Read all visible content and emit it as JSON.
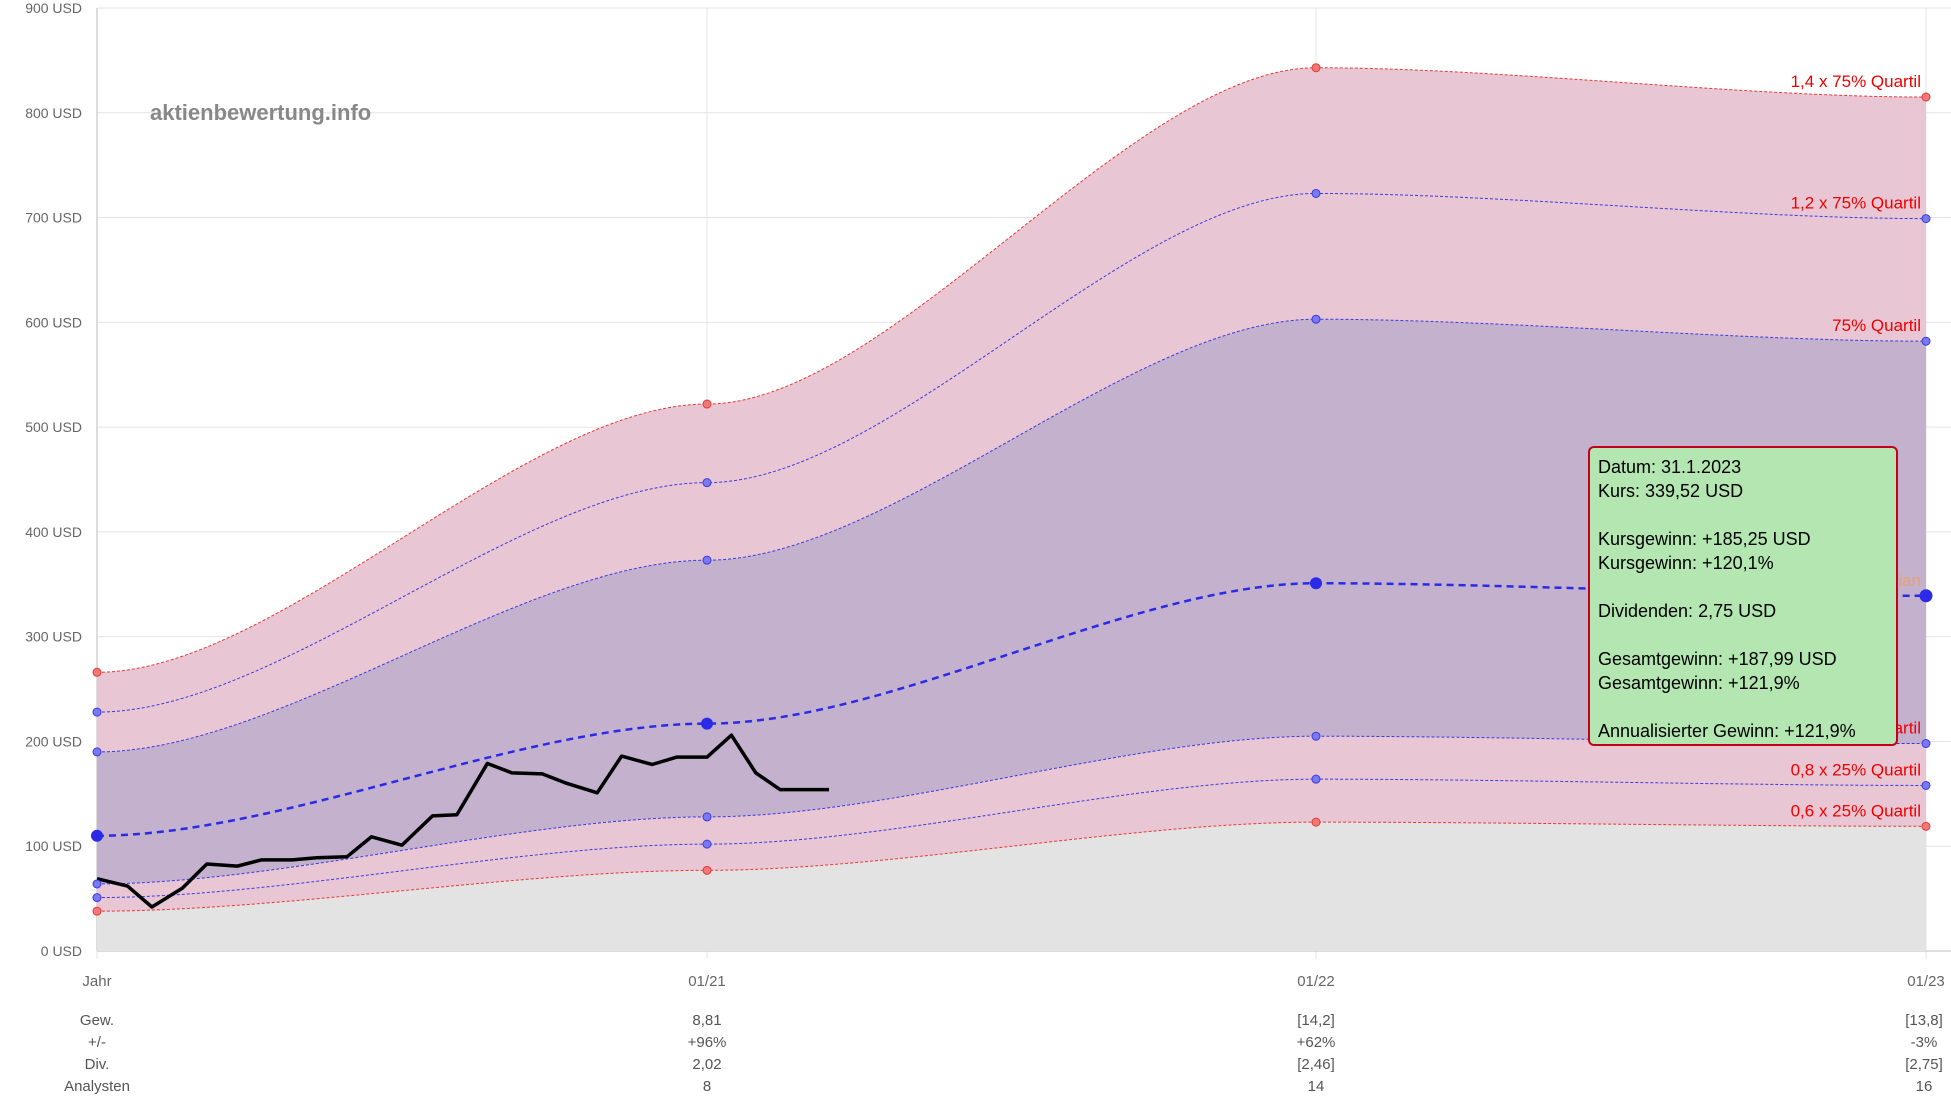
{
  "watermark": "aktienbewertung.info",
  "chart_data": {
    "type": "line",
    "x_categories": [
      "Jahr",
      "01/21",
      "01/22",
      "01/23"
    ],
    "y_ticks": [
      "0 USD",
      "100 USD",
      "200 USD",
      "300 USD",
      "400 USD",
      "500 USD",
      "600 USD",
      "700 USD",
      "800 USD",
      "900 USD"
    ],
    "ylim": [
      0,
      900
    ],
    "grid": true,
    "bands": [
      {
        "name": "1,4 x 75% Quartil",
        "color": "#e53935",
        "values": [
          266,
          522,
          843,
          815
        ]
      },
      {
        "name": "1,2 x 75% Quartil",
        "color": "#3a3ae0",
        "values": [
          228,
          447,
          723,
          699
        ]
      },
      {
        "name": "75% Quartil",
        "color": "#3a3ae0",
        "values": [
          190,
          373,
          603,
          582
        ]
      },
      {
        "name": "Median",
        "color": "#2a2ae8",
        "values": [
          110,
          217,
          351,
          339
        ]
      },
      {
        "name": "25% Quartil",
        "color": "#3a3ae0",
        "values": [
          64,
          128,
          205,
          198
        ]
      },
      {
        "name": "0,8 x 25% Quartil",
        "color": "#3a3ae0",
        "values": [
          51,
          102,
          164,
          158
        ]
      },
      {
        "name": "0,6 x 25% Quartil",
        "color": "#e53935",
        "values": [
          38,
          77,
          123,
          119
        ]
      }
    ],
    "price": {
      "x": [
        0,
        0.05,
        0.09,
        0.14,
        0.18,
        0.23,
        0.27,
        0.32,
        0.36,
        0.41,
        0.45,
        0.5,
        0.55,
        0.59,
        0.64,
        0.68,
        0.73,
        0.77,
        0.82,
        0.86,
        0.91,
        0.95
      ],
      "values": [
        69,
        62,
        42,
        60,
        83,
        81,
        87,
        87,
        89,
        90,
        109,
        101,
        129,
        130,
        179,
        170,
        169,
        160,
        151,
        186,
        178,
        185
      ],
      "x_extra": [
        1.0,
        1.04,
        1.08,
        1.12,
        1.16,
        1.2
      ],
      "values_extra": [
        185,
        206,
        170,
        154,
        154,
        154
      ]
    },
    "bottom_rows": [
      {
        "label": "Gew.",
        "values": [
          "",
          "8,81",
          "[14,2]",
          "[13,8]"
        ]
      },
      {
        "label": "+/-",
        "values": [
          "",
          "+96%",
          "+62%",
          "-3%"
        ]
      },
      {
        "label": "Div.",
        "values": [
          "",
          "2,02",
          "[2,46]",
          "[2,75]"
        ]
      },
      {
        "label": "Analysten",
        "values": [
          "",
          "8",
          "14",
          "16"
        ]
      }
    ]
  },
  "tooltip": {
    "datum": "Datum: 31.1.2023",
    "kurs": "Kurs: 339,52 USD",
    "kursgewinn_usd": "Kursgewinn: +185,25 USD",
    "kursgewinn_pct": "Kursgewinn: +120,1%",
    "dividenden": "Dividenden: 2,75 USD",
    "gesamtgewinn_usd": "Gesamtgewinn: +187,99 USD",
    "gesamtgewinn_pct": "Gesamtgewinn: +121,9%",
    "annualisiert": "Annualisierter Gewinn: +121,9%"
  }
}
